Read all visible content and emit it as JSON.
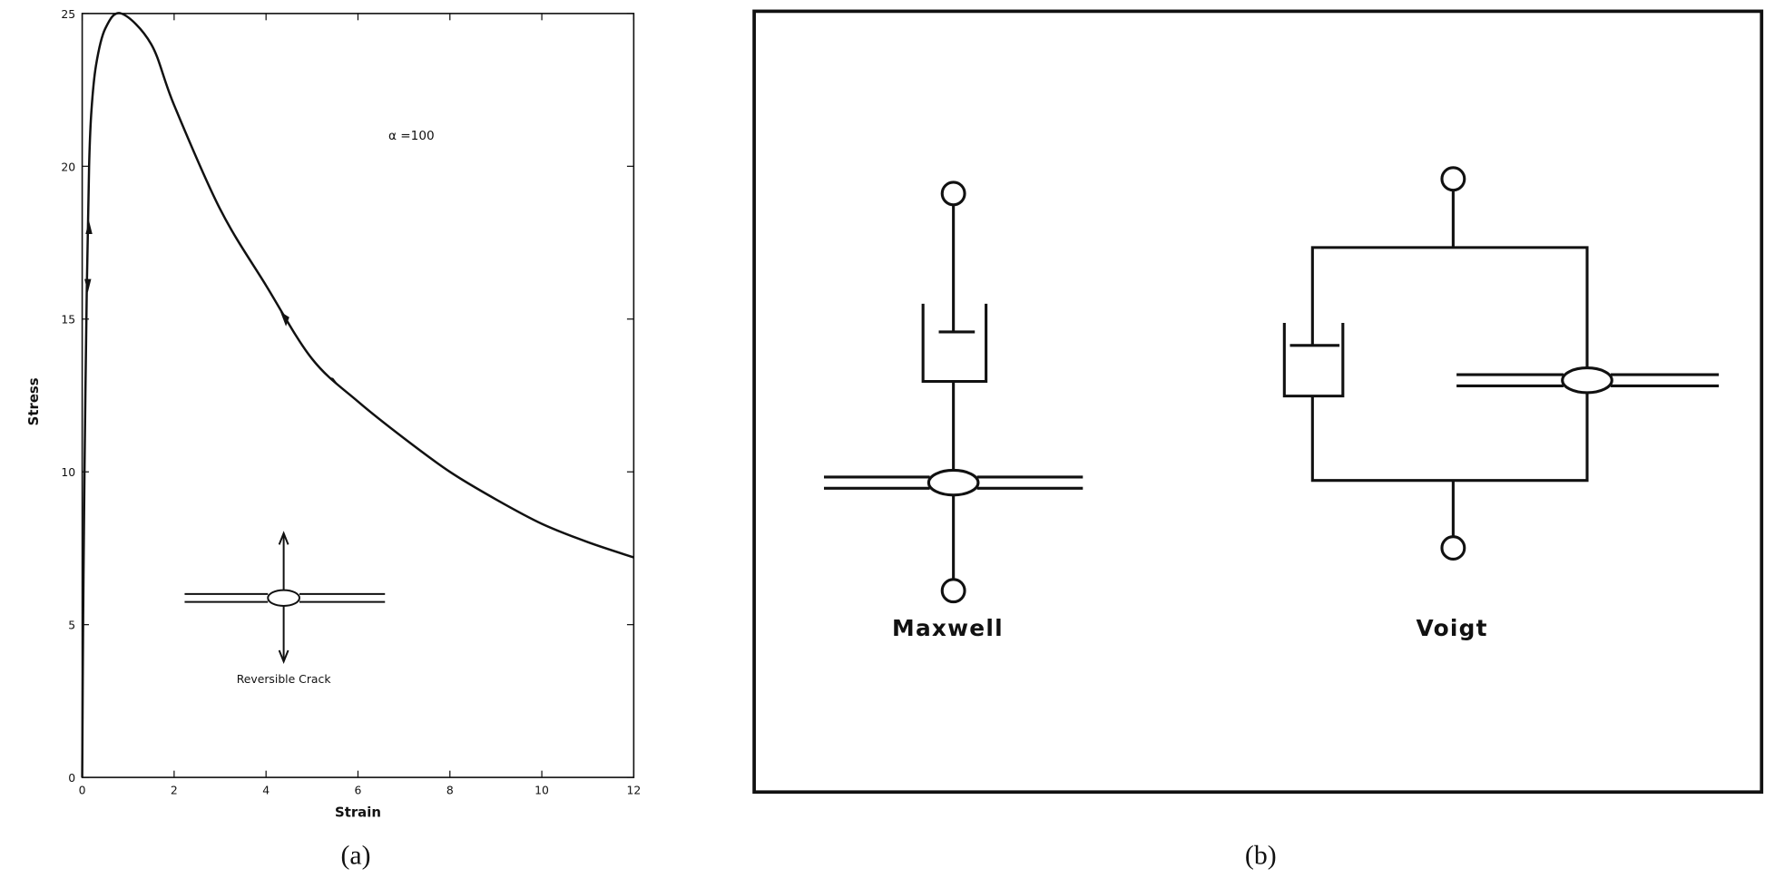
{
  "chart_data": {
    "type": "line",
    "x_label": "Strain",
    "y_label": "Stress",
    "annotation": "α =100",
    "inset_label": "Reversible Crack",
    "caption": "(a)",
    "x": [
      0,
      0.02,
      0.05,
      0.1,
      0.15,
      0.2,
      0.3,
      0.5,
      0.85,
      1.5,
      2,
      3,
      4,
      5,
      6,
      7,
      8,
      9,
      10,
      11,
      12
    ],
    "values": [
      0,
      5,
      10,
      16,
      20,
      21.8,
      23.3,
      24.5,
      25,
      24,
      22,
      18.6,
      16.1,
      13.7,
      12.3,
      11.1,
      10,
      9.1,
      8.3,
      7.7,
      7.2
    ],
    "color": "#111111",
    "xlim": [
      0,
      12
    ],
    "xticks": [
      0,
      2,
      4,
      6,
      8,
      10,
      12
    ],
    "ylim": [
      0,
      25
    ],
    "yticks": [
      0,
      5,
      10,
      15,
      20,
      25
    ]
  },
  "diagram": {
    "caption": "(b)",
    "models": [
      "Maxwell",
      "Voigt"
    ]
  }
}
